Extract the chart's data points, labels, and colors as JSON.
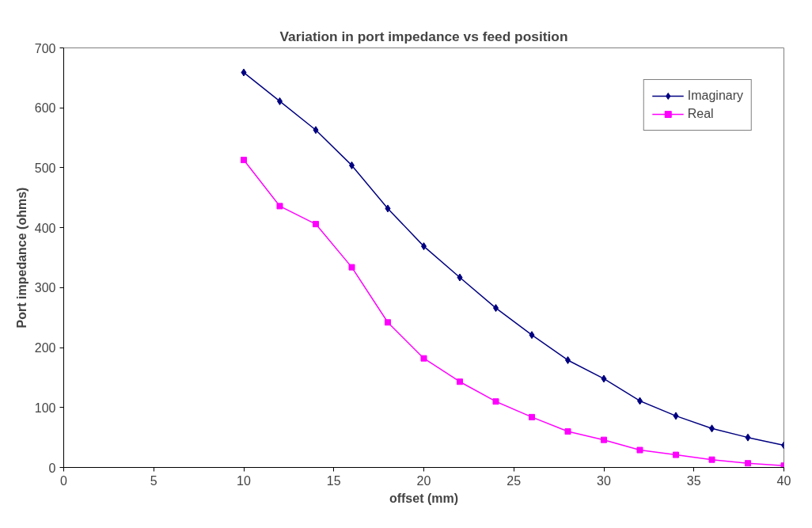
{
  "chart_data": {
    "type": "line",
    "title": "Variation in port impedance vs feed position",
    "xlabel": "offset (mm)",
    "ylabel": "Port impedance (ohms)",
    "x": [
      10,
      12,
      14,
      16,
      18,
      20,
      22,
      24,
      26,
      28,
      30,
      32,
      34,
      36,
      38,
      40
    ],
    "series": [
      {
        "name": "Imaginary",
        "color": "#000080",
        "marker": "diamond",
        "values": [
          659,
          611,
          563,
          504,
          432,
          369,
          317,
          266,
          221,
          179,
          148,
          111,
          86,
          65,
          50,
          37
        ]
      },
      {
        "name": "Real",
        "color": "#ff00ff",
        "marker": "square",
        "values": [
          513,
          436,
          406,
          334,
          242,
          182,
          143,
          110,
          84,
          60,
          46,
          29,
          21,
          13,
          7,
          3
        ]
      }
    ],
    "xlim": [
      0,
      40
    ],
    "xticks": [
      0,
      5,
      10,
      15,
      20,
      25,
      30,
      35,
      40
    ],
    "ylim": [
      0,
      700
    ],
    "yticks": [
      0,
      100,
      200,
      300,
      400,
      500,
      600,
      700
    ],
    "grid": false,
    "legend": "top right",
    "line_style": "solid"
  }
}
